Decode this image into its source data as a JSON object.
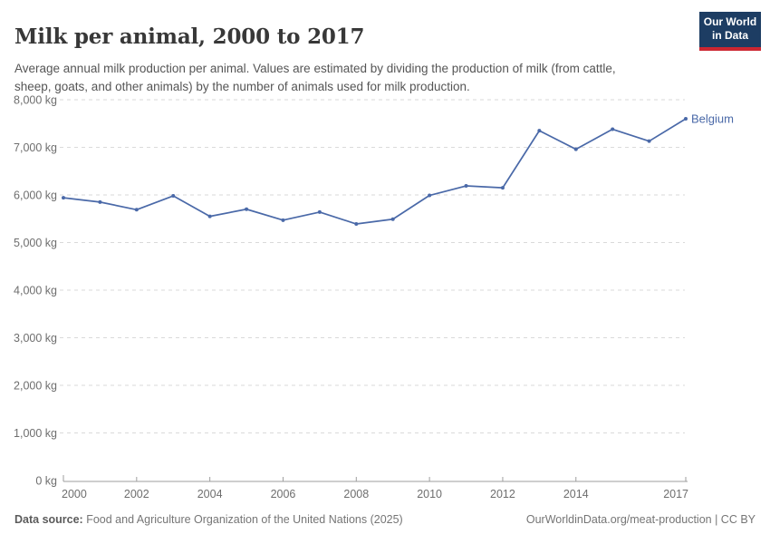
{
  "header": {
    "title": "Milk per animal, 2000 to 2017",
    "subtitle": "Average annual milk production per animal. Values are estimated by dividing the production of milk (from cattle, sheep, goats, and other animals) by the number of animals used for milk production.",
    "logo": {
      "line1": "Our World",
      "line2": "in Data"
    }
  },
  "chart_data": {
    "type": "line",
    "title": "Milk per animal, 2000 to 2017",
    "x": [
      2000,
      2001,
      2002,
      2003,
      2004,
      2005,
      2006,
      2007,
      2008,
      2009,
      2010,
      2011,
      2012,
      2013,
      2014,
      2015,
      2016,
      2017
    ],
    "series": [
      {
        "name": "Belgium",
        "values": [
          5940,
          5850,
          5690,
          5980,
          5550,
          5700,
          5470,
          5640,
          5390,
          5490,
          5990,
          6190,
          6150,
          7350,
          6960,
          7380,
          7130,
          7600
        ]
      }
    ],
    "xlabel": "",
    "ylabel": "",
    "ylim": [
      0,
      8000
    ],
    "ytick_step": 1000,
    "ytick_suffix": " kg",
    "xticks": [
      2000,
      2002,
      2004,
      2006,
      2008,
      2010,
      2012,
      2014,
      2017
    ],
    "grid": "horizontal-dashed",
    "legend_position": "line-end-label"
  },
  "footer": {
    "source_label": "Data source:",
    "source_text": " Food and Agriculture Organization of the United Nations (2025)",
    "link_text": "OurWorldinData.org/meat-production | CC BY"
  },
  "colors": {
    "series": "#4a69a8",
    "grid": "#dadada",
    "axis": "#9e9e9e",
    "tick_text": "#6e6e6e",
    "logo_bg": "#1d3d63",
    "logo_red": "#cc2631"
  }
}
